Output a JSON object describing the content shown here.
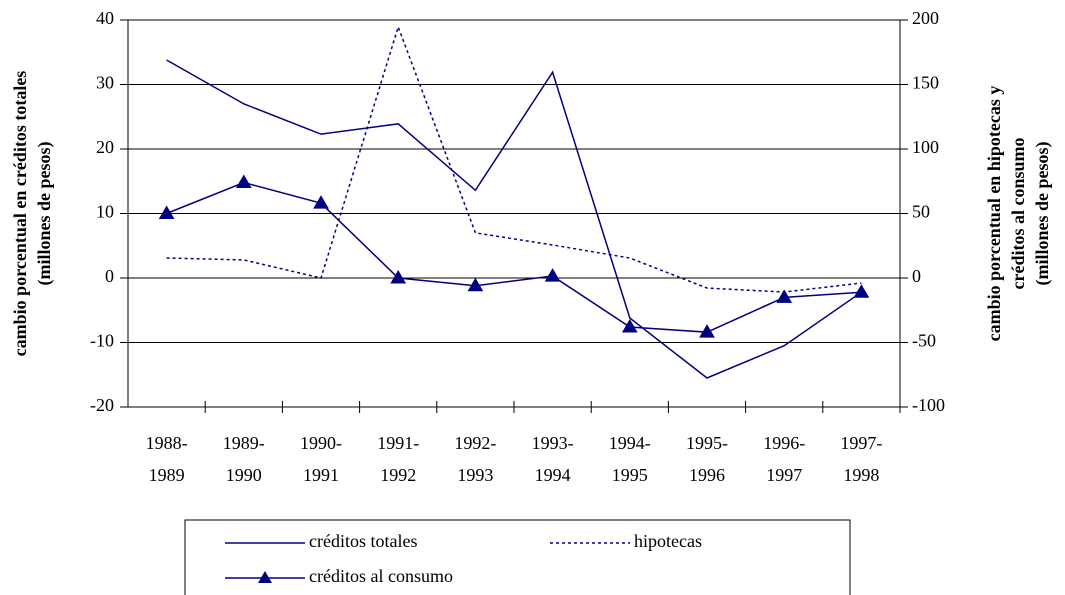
{
  "chart_data": {
    "type": "line",
    "categories": [
      "1988-1989",
      "1989-1990",
      "1990-1991",
      "1991-1992",
      "1992-1993",
      "1993-1994",
      "1994-1995",
      "1995-1996",
      "1996-1997",
      "1997-1998"
    ],
    "y_label": [
      "cambio porcentual en créditos totales",
      "(millones de pesos)"
    ],
    "y2_label": [
      "cambio porcentual en hipotecas y",
      "créditos al consumo",
      "(millones de pesos)"
    ],
    "ylim": [
      -20,
      40
    ],
    "yticks": [
      -20,
      -10,
      0,
      10,
      20,
      30,
      40
    ],
    "y2lim": [
      -100,
      200
    ],
    "y2ticks": [
      -100,
      -50,
      0,
      50,
      100,
      150,
      200
    ],
    "grid": true,
    "legend": "bottom",
    "series": [
      {
        "name": "créditos totales",
        "color": "#000080",
        "style": "solid",
        "marker": "none",
        "values": [
          33.8,
          27,
          22.3,
          23.9,
          13.6,
          31.9,
          -6.2,
          -15.5,
          -10.5,
          -2.2
        ]
      },
      {
        "name": "hipotecas",
        "color": "#000080",
        "style": "dashed",
        "marker": "none",
        "axis": "y2",
        "values": [
          15.5,
          14,
          0,
          194.6,
          35,
          25.6,
          15.5,
          -7.8,
          -10.9,
          -3.9
        ]
      },
      {
        "name": "créditos al consumo",
        "color": "#000080",
        "style": "solid",
        "marker": "triangle",
        "axis": "y2",
        "values": [
          50,
          74,
          58,
          0,
          -6,
          1.5,
          -38,
          -42,
          -15,
          -11
        ]
      }
    ]
  }
}
